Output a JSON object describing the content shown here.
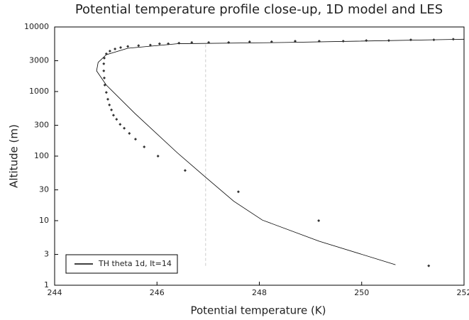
{
  "chart_data": {
    "type": "line",
    "title": "Potential temperature profile close-up, 1D model and LES",
    "xlabel": "Potential temperature (K)",
    "ylabel": "Altitude (m)",
    "xlim": [
      244,
      252
    ],
    "xticks": [
      244,
      246,
      248,
      250,
      252
    ],
    "ylim": [
      1,
      10000
    ],
    "yticks": [
      1,
      3,
      10,
      30,
      100,
      300,
      1000,
      3000,
      10000
    ],
    "yscale": "log",
    "legend": "lower left",
    "series": [
      {
        "name": "TH theta 1d, It=14",
        "color": "#000000",
        "linestyle": "solid",
        "x": [
          250.66,
          249.17,
          248.06,
          247.5,
          246.95,
          246.4,
          245.57,
          245.01,
          244.82,
          244.85,
          245.01,
          245.43,
          246.4,
          248.48,
          252
        ],
        "values": [
          2.08,
          4.8,
          10.2,
          20,
          47,
          112,
          457,
          1260,
          2090,
          2820,
          3720,
          4680,
          5500,
          5750,
          6460
        ]
      },
      {
        "color": "#333333",
        "marker": "diamond",
        "x": [
          251.31,
          249.16,
          247.59,
          246.55,
          246.02,
          245.75,
          245.58,
          245.46,
          245.36,
          245.28,
          245.21,
          245.15,
          245.11,
          245.07,
          245.04,
          245.01,
          244.98,
          244.97,
          244.96,
          244.96,
          244.97,
          245.01,
          245.08,
          245.18,
          245.29,
          245.43,
          245.64,
          245.87,
          246.05,
          246.22,
          246.43,
          246.68,
          247.01,
          247.4,
          247.81,
          248.24,
          248.7,
          249.17,
          249.64,
          250.09,
          250.53,
          250.96,
          251.41,
          251.79
        ],
        "values": [
          2.0,
          10,
          28,
          60,
          100,
          139,
          183,
          225,
          270,
          310,
          372,
          430,
          520,
          620,
          760,
          970,
          1260,
          1620,
          2090,
          2690,
          3300,
          3830,
          4230,
          4560,
          4800,
          5000,
          5150,
          5250,
          5500,
          5500,
          5630,
          5750,
          5750,
          5750,
          5900,
          5900,
          6030,
          6030,
          6030,
          6170,
          6170,
          6320,
          6320,
          6460
        ]
      },
      {
        "color": "#cccccc",
        "linestyle": "dashed",
        "x": [
          246.95,
          246.95
        ],
        "values": [
          2,
          5500
        ]
      }
    ]
  }
}
